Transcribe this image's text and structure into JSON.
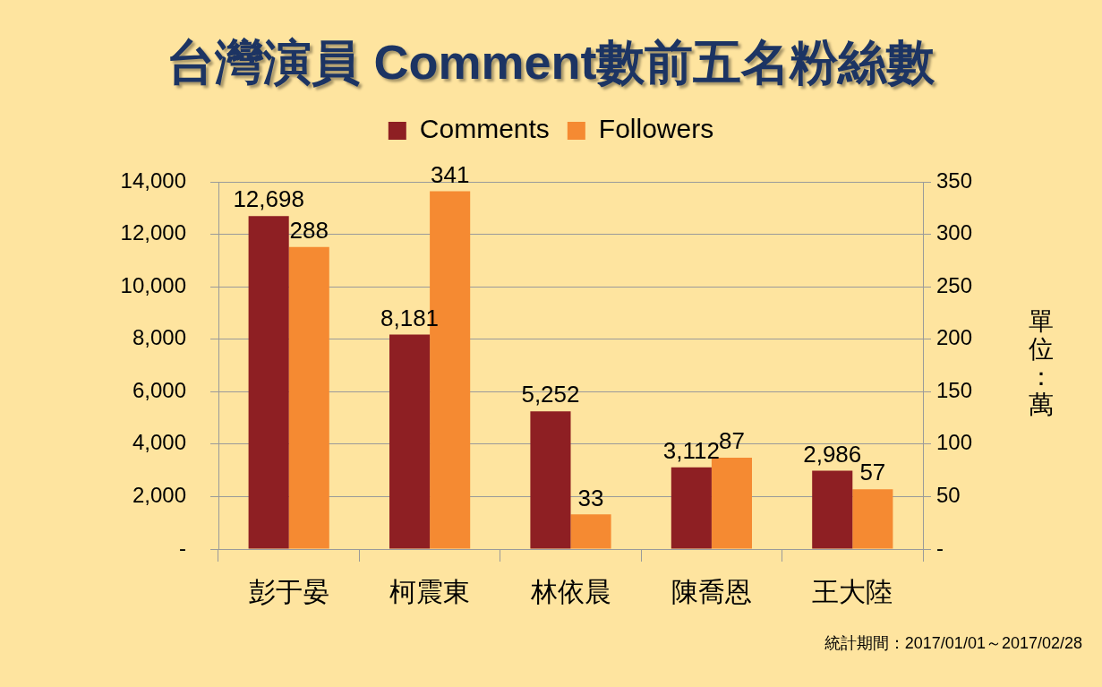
{
  "chart_data": {
    "type": "bar",
    "title": "台灣演員 Comment數前五名粉絲數",
    "y2label": "單位：萬",
    "categories": [
      "彭于晏",
      "柯震東",
      "林依晨",
      "陳喬恩",
      "王大陸"
    ],
    "series": [
      {
        "name": "Comments",
        "color": "#8e1f23",
        "values": [
          12698,
          8181,
          5252,
          3112,
          2986
        ],
        "value_labels": [
          "12,698",
          "8,181",
          "5,252",
          "3,112",
          "2,986"
        ]
      },
      {
        "name": "Followers",
        "color": "#f58a32",
        "axis": "y2",
        "values": [
          288,
          341,
          33,
          87,
          57
        ],
        "value_labels": [
          "288",
          "341",
          "33",
          "87",
          "57"
        ]
      }
    ],
    "ylim": [
      0,
      14000
    ],
    "yticks": [
      {
        "value": 0,
        "label": "-"
      },
      {
        "value": 2000,
        "label": "2,000"
      },
      {
        "value": 4000,
        "label": "4,000"
      },
      {
        "value": 6000,
        "label": "6,000"
      },
      {
        "value": 8000,
        "label": "8,000"
      },
      {
        "value": 10000,
        "label": "10,000"
      },
      {
        "value": 12000,
        "label": "12,000"
      },
      {
        "value": 14000,
        "label": "14,000"
      }
    ],
    "y2lim": [
      0,
      350
    ],
    "y2ticks": [
      {
        "value": 0,
        "label": "-"
      },
      50,
      100,
      150,
      200,
      250,
      300,
      350
    ],
    "grid": "y",
    "legend": "top",
    "annotations": [
      "統計期間：2017/01/01～2017/02/28"
    ]
  }
}
